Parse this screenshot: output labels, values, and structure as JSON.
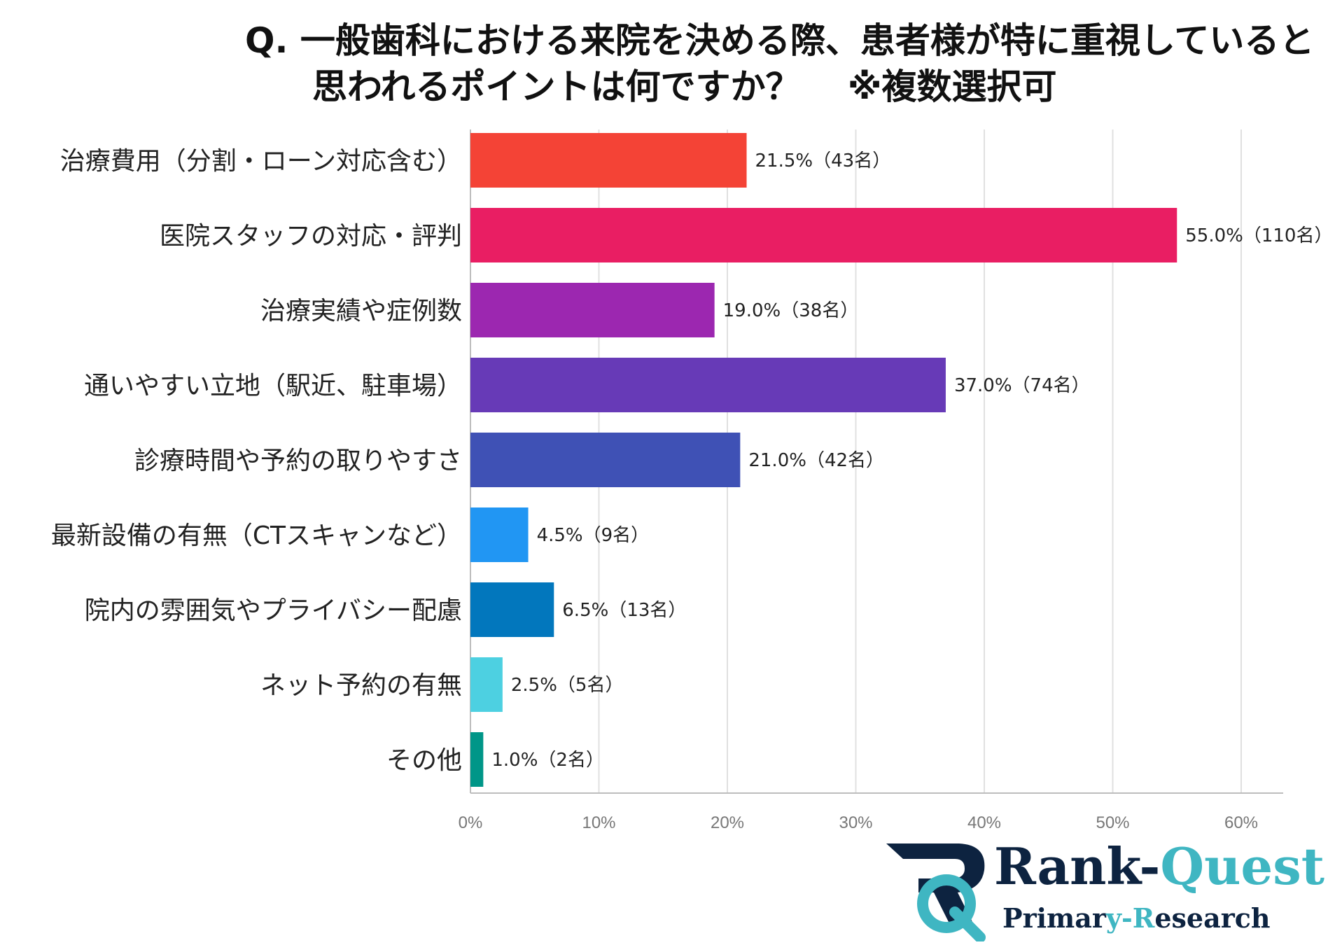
{
  "chart_data": {
    "type": "bar",
    "orientation": "horizontal",
    "title_line1": "Q.  一般歯科における来院を決める際、患者様が特に重視していると",
    "title_line2": "思われるポイントは何ですか？　  ※複数選択可",
    "categories": [
      "治療費用（分割・ローン対応含む）",
      "医院スタッフの対応・評判",
      "治療実績や症例数",
      "通いやすい立地（駅近、駐車場）",
      "診療時間や予約の取りやすさ",
      "最新設備の有無（CTスキャンなど）",
      "院内の雰囲気やプライバシー配慮",
      "ネット予約の有無",
      "その他"
    ],
    "values": [
      21.5,
      55.0,
      19.0,
      37.0,
      21.0,
      4.5,
      6.5,
      2.5,
      1.0
    ],
    "data_labels": [
      "21.5%（43名）",
      "55.0%（110名）",
      "19.0%（38名）",
      "37.0%（74名）",
      "21.0%（42名）",
      "4.5%（9名）",
      "6.5%（13名）",
      "2.5%（5名）",
      "1.0%（2名）"
    ],
    "colors": [
      "#f44336",
      "#e91e63",
      "#9c27b0",
      "#673ab7",
      "#3f51b5",
      "#2196f3",
      "#0277bd",
      "#4dd0e1",
      "#009688"
    ],
    "xlim": [
      0,
      60
    ],
    "xticks": [
      0,
      10,
      20,
      30,
      40,
      50,
      60
    ],
    "xtick_labels": [
      "0%",
      "10%",
      "20%",
      "30%",
      "40%",
      "50%",
      "60%"
    ],
    "grid": true
  },
  "logo": {
    "name_part1": "Rank-",
    "name_part2": "Quest",
    "sub_part1": "Primar",
    "sub_part2": "y-",
    "sub_part3": "R",
    "sub_part4": "esearch"
  }
}
